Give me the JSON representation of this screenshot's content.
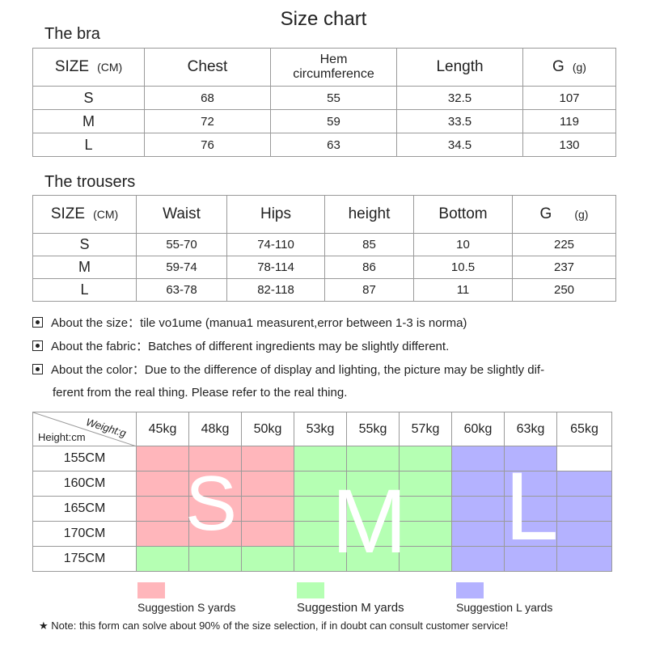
{
  "title": "Size chart",
  "bra": {
    "section_title": "The bra",
    "headers": [
      "SIZE",
      "Chest",
      "Hem circumference",
      "Length",
      "G"
    ],
    "size_unit": "(CM)",
    "g_unit": "(g)",
    "rows": [
      [
        "S",
        "68",
        "55",
        "32.5",
        "107"
      ],
      [
        "M",
        "72",
        "59",
        "33.5",
        "119"
      ],
      [
        "L",
        "76",
        "63",
        "34.5",
        "130"
      ]
    ]
  },
  "trousers": {
    "section_title": "The trousers",
    "headers": [
      "SIZE",
      "Waist",
      "Hips",
      "height",
      "Bottom",
      "G"
    ],
    "size_unit": "(CM)",
    "g_unit": "(g)",
    "rows": [
      [
        "S",
        "55-70",
        "74-110",
        "85",
        "10",
        "225"
      ],
      [
        "M",
        "59-74",
        "78-114",
        "86",
        "10.5",
        "237"
      ],
      [
        "L",
        "63-78",
        "82-118",
        "87",
        "11",
        "250"
      ]
    ]
  },
  "notes": [
    {
      "label": "About the size：",
      "text": "tile vo1ume (manua1 measurent,error between 1-3 is norma)"
    },
    {
      "label": "About the fabric：",
      "text": "Batches of different ingredients may be slightly different."
    },
    {
      "label": "About the color：",
      "text": "Due to the difference of display and lighting, the picture may be slightly dif-"
    },
    {
      "label": "",
      "text": "ferent from the real thing. Please refer to the real thing."
    }
  ],
  "grid": {
    "weight_label": "Weight:g",
    "height_label": "Height:cm",
    "weights": [
      "45kg",
      "48kg",
      "50kg",
      "53kg",
      "55kg",
      "57kg",
      "60kg",
      "63kg",
      "65kg"
    ],
    "heights": [
      "155CM",
      "160CM",
      "165CM",
      "170CM",
      "175CM"
    ],
    "cells": [
      [
        "s",
        "s",
        "s",
        "m",
        "m",
        "m",
        "l",
        "l",
        "e"
      ],
      [
        "s",
        "s",
        "s",
        "m",
        "m",
        "m",
        "l",
        "l",
        "l"
      ],
      [
        "s",
        "s",
        "s",
        "m",
        "m",
        "m",
        "l",
        "l",
        "l"
      ],
      [
        "s",
        "s",
        "s",
        "m",
        "m",
        "m",
        "l",
        "l",
        "l"
      ],
      [
        "m",
        "m",
        "m",
        "m",
        "m",
        "m",
        "l",
        "l",
        "l"
      ]
    ],
    "letters": [
      "S",
      "M",
      "L"
    ],
    "colors": {
      "s": "#ffb6bb",
      "m": "#b5ffb3",
      "l": "#b4b2ff"
    }
  },
  "legend": [
    {
      "key": "s",
      "label": "Suggestion S yards"
    },
    {
      "key": "m",
      "label": "Suggestion M yards"
    },
    {
      "key": "l",
      "label": "Suggestion L yards"
    }
  ],
  "footnote": "★ Note: this form can solve about 90% of the size selection, if in doubt can consult customer service!"
}
